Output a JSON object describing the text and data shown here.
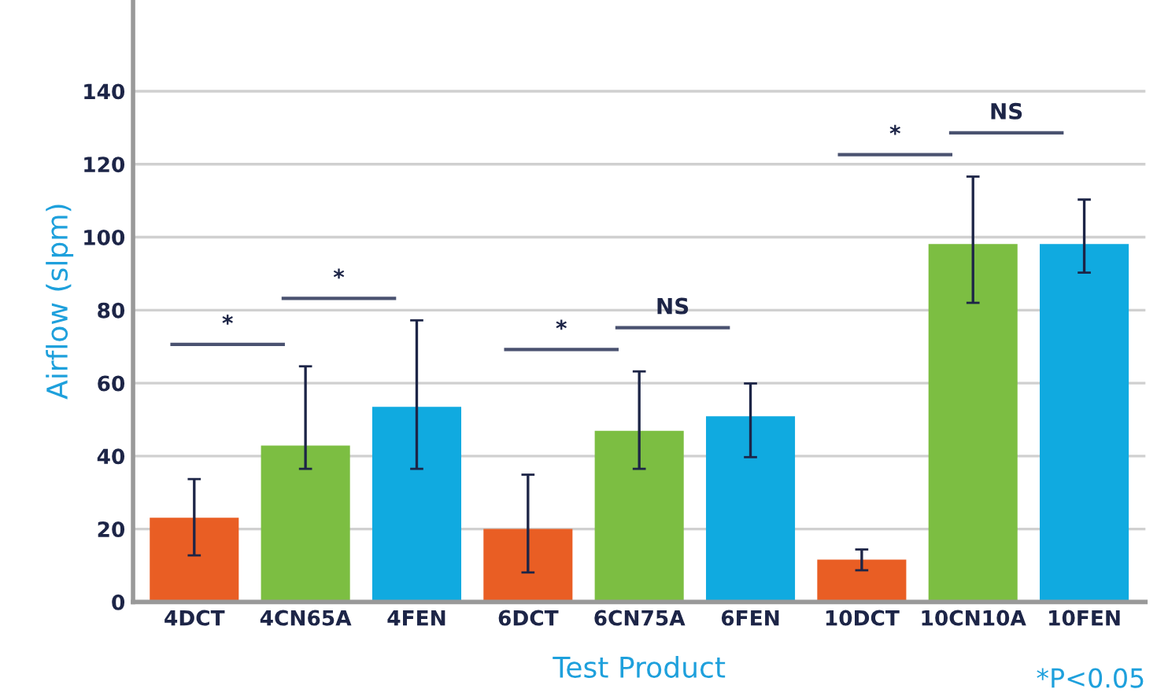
{
  "chart_data": {
    "type": "bar",
    "xlabel": "Test Product",
    "ylabel": "Airflow (slpm)",
    "categories": [
      "4DCT",
      "4CN65A",
      "4FEN",
      "6DCT",
      "6CN75A",
      "6FEN",
      "10DCT",
      "10CN10A",
      "10FEN"
    ],
    "values": [
      23.1,
      42.9,
      53.5,
      20,
      46.9,
      50.9,
      11.6,
      98.1,
      98.1
    ],
    "colors": [
      "#e95e24",
      "#7cbe42",
      "#10aae0",
      "#e95e24",
      "#7cbe42",
      "#10aae0",
      "#e95e24",
      "#7cbe42",
      "#10aae0"
    ],
    "errors": [
      [
        12.8,
        33.7
      ],
      [
        36.5,
        64.6
      ],
      [
        36.5,
        77.2
      ],
      [
        8.1,
        34.9
      ],
      [
        36.5,
        63.2
      ],
      [
        39.7,
        59.9
      ],
      [
        8.7,
        14.4
      ],
      [
        82,
        116.6
      ],
      [
        90.3,
        110.3
      ]
    ],
    "ylim": [
      0,
      165
    ],
    "yticks": [
      0,
      20,
      40,
      60,
      80,
      100,
      120,
      140
    ],
    "grid": "y",
    "annotations": [
      "*",
      "*",
      "*",
      "NS",
      "*",
      "NS",
      "*P<0.05"
    ]
  }
}
